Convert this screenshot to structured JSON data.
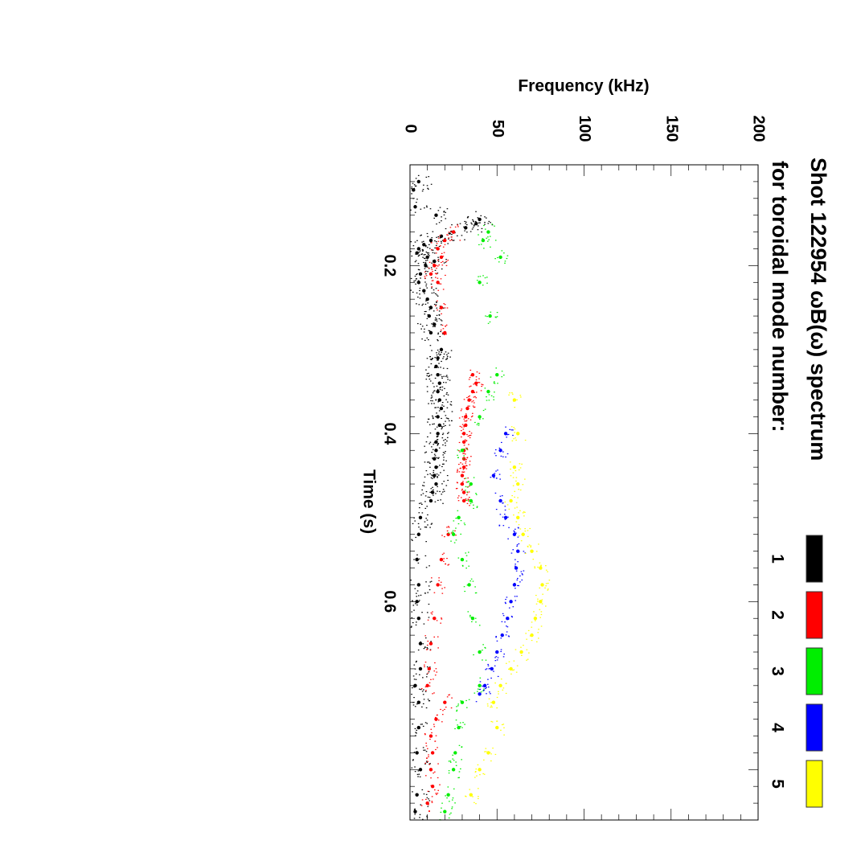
{
  "chart_data": {
    "type": "scatter",
    "title": "Shot 122954 ωB(ω) spectrum",
    "subtitle": "for toroidal mode number:",
    "xlabel": "Time (s)",
    "ylabel": "Frequency (kHz)",
    "xlim": [
      0.08,
      0.86
    ],
    "ylim": [
      0,
      200
    ],
    "x_ticks": [
      {
        "value": 0.2,
        "label": "0.2"
      },
      {
        "value": 0.4,
        "label": "0.4"
      },
      {
        "value": 0.6,
        "label": "0.6"
      }
    ],
    "y_ticks": [
      {
        "value": 0,
        "label": "0"
      },
      {
        "value": 50,
        "label": "50"
      },
      {
        "value": 100,
        "label": "100"
      },
      {
        "value": 150,
        "label": "150"
      },
      {
        "value": 200,
        "label": "200"
      }
    ],
    "legend": [
      {
        "label": "1",
        "color": "#000000"
      },
      {
        "label": "2",
        "color": "#ff0000"
      },
      {
        "label": "3",
        "color": "#00ee00"
      },
      {
        "label": "4",
        "color": "#0000ff"
      },
      {
        "label": "5",
        "color": "#ffff00"
      }
    ],
    "series": [
      {
        "name": "1",
        "color": "#000000",
        "points": [
          [
            0.1,
            5
          ],
          [
            0.11,
            2
          ],
          [
            0.13,
            3
          ],
          [
            0.14,
            15
          ],
          [
            0.145,
            40
          ],
          [
            0.15,
            38
          ],
          [
            0.155,
            32
          ],
          [
            0.16,
            25
          ],
          [
            0.165,
            18
          ],
          [
            0.17,
            12
          ],
          [
            0.175,
            8
          ],
          [
            0.18,
            5
          ],
          [
            0.185,
            4
          ],
          [
            0.19,
            10
          ],
          [
            0.195,
            14
          ],
          [
            0.2,
            9
          ],
          [
            0.21,
            6
          ],
          [
            0.22,
            5
          ],
          [
            0.23,
            8
          ],
          [
            0.24,
            10
          ],
          [
            0.25,
            12
          ],
          [
            0.26,
            11
          ],
          [
            0.27,
            14
          ],
          [
            0.28,
            12
          ],
          [
            0.3,
            18
          ],
          [
            0.31,
            16
          ],
          [
            0.32,
            15
          ],
          [
            0.33,
            16
          ],
          [
            0.34,
            17
          ],
          [
            0.35,
            16
          ],
          [
            0.36,
            17
          ],
          [
            0.37,
            18
          ],
          [
            0.38,
            16
          ],
          [
            0.39,
            17
          ],
          [
            0.4,
            16
          ],
          [
            0.41,
            15
          ],
          [
            0.42,
            15
          ],
          [
            0.43,
            14
          ],
          [
            0.44,
            15
          ],
          [
            0.45,
            14
          ],
          [
            0.46,
            15
          ],
          [
            0.47,
            13
          ],
          [
            0.48,
            12
          ],
          [
            0.5,
            6
          ],
          [
            0.52,
            5
          ],
          [
            0.55,
            4
          ],
          [
            0.58,
            5
          ],
          [
            0.6,
            4
          ],
          [
            0.62,
            5
          ],
          [
            0.65,
            6
          ],
          [
            0.68,
            6
          ],
          [
            0.7,
            3
          ],
          [
            0.72,
            5
          ],
          [
            0.75,
            5
          ],
          [
            0.78,
            4
          ],
          [
            0.8,
            6
          ],
          [
            0.83,
            4
          ],
          [
            0.85,
            3
          ]
        ]
      },
      {
        "name": "2",
        "color": "#ff0000",
        "points": [
          [
            0.16,
            25
          ],
          [
            0.17,
            20
          ],
          [
            0.18,
            16
          ],
          [
            0.19,
            18
          ],
          [
            0.2,
            14
          ],
          [
            0.21,
            12
          ],
          [
            0.22,
            16
          ],
          [
            0.25,
            18
          ],
          [
            0.28,
            20
          ],
          [
            0.33,
            36
          ],
          [
            0.34,
            38
          ],
          [
            0.35,
            36
          ],
          [
            0.36,
            34
          ],
          [
            0.37,
            33
          ],
          [
            0.38,
            32
          ],
          [
            0.39,
            32
          ],
          [
            0.4,
            31
          ],
          [
            0.41,
            31
          ],
          [
            0.42,
            31
          ],
          [
            0.43,
            31
          ],
          [
            0.44,
            31
          ],
          [
            0.45,
            30
          ],
          [
            0.46,
            30
          ],
          [
            0.47,
            31
          ],
          [
            0.48,
            31
          ],
          [
            0.52,
            22
          ],
          [
            0.55,
            18
          ],
          [
            0.58,
            16
          ],
          [
            0.62,
            14
          ],
          [
            0.65,
            12
          ],
          [
            0.68,
            11
          ],
          [
            0.7,
            10
          ],
          [
            0.72,
            20
          ],
          [
            0.74,
            15
          ],
          [
            0.76,
            12
          ],
          [
            0.78,
            13
          ],
          [
            0.8,
            12
          ],
          [
            0.82,
            13
          ],
          [
            0.84,
            10
          ]
        ]
      },
      {
        "name": "3",
        "color": "#00ee00",
        "points": [
          [
            0.16,
            45
          ],
          [
            0.17,
            42
          ],
          [
            0.19,
            52
          ],
          [
            0.22,
            40
          ],
          [
            0.26,
            46
          ],
          [
            0.33,
            50
          ],
          [
            0.35,
            45
          ],
          [
            0.38,
            40
          ],
          [
            0.42,
            30
          ],
          [
            0.46,
            35
          ],
          [
            0.48,
            35
          ],
          [
            0.5,
            28
          ],
          [
            0.52,
            25
          ],
          [
            0.55,
            30
          ],
          [
            0.58,
            34
          ],
          [
            0.62,
            36
          ],
          [
            0.66,
            40
          ],
          [
            0.7,
            40
          ],
          [
            0.72,
            30
          ],
          [
            0.75,
            28
          ],
          [
            0.78,
            26
          ],
          [
            0.8,
            25
          ],
          [
            0.83,
            22
          ],
          [
            0.85,
            20
          ]
        ]
      },
      {
        "name": "4",
        "color": "#0000ff",
        "points": [
          [
            0.4,
            55
          ],
          [
            0.42,
            52
          ],
          [
            0.45,
            48
          ],
          [
            0.48,
            52
          ],
          [
            0.5,
            55
          ],
          [
            0.52,
            60
          ],
          [
            0.54,
            62
          ],
          [
            0.56,
            61
          ],
          [
            0.58,
            60
          ],
          [
            0.6,
            58
          ],
          [
            0.62,
            56
          ],
          [
            0.64,
            53
          ],
          [
            0.66,
            50
          ],
          [
            0.68,
            47
          ],
          [
            0.7,
            43
          ],
          [
            0.71,
            40
          ]
        ]
      },
      {
        "name": "5",
        "color": "#ffff00",
        "points": [
          [
            0.36,
            60
          ],
          [
            0.4,
            62
          ],
          [
            0.44,
            60
          ],
          [
            0.46,
            62
          ],
          [
            0.48,
            58
          ],
          [
            0.5,
            62
          ],
          [
            0.52,
            65
          ],
          [
            0.54,
            70
          ],
          [
            0.56,
            75
          ],
          [
            0.58,
            76
          ],
          [
            0.6,
            75
          ],
          [
            0.62,
            72
          ],
          [
            0.64,
            70
          ],
          [
            0.66,
            64
          ],
          [
            0.68,
            58
          ],
          [
            0.7,
            52
          ],
          [
            0.72,
            48
          ],
          [
            0.75,
            50
          ],
          [
            0.78,
            45
          ],
          [
            0.8,
            40
          ],
          [
            0.83,
            35
          ]
        ]
      }
    ]
  }
}
